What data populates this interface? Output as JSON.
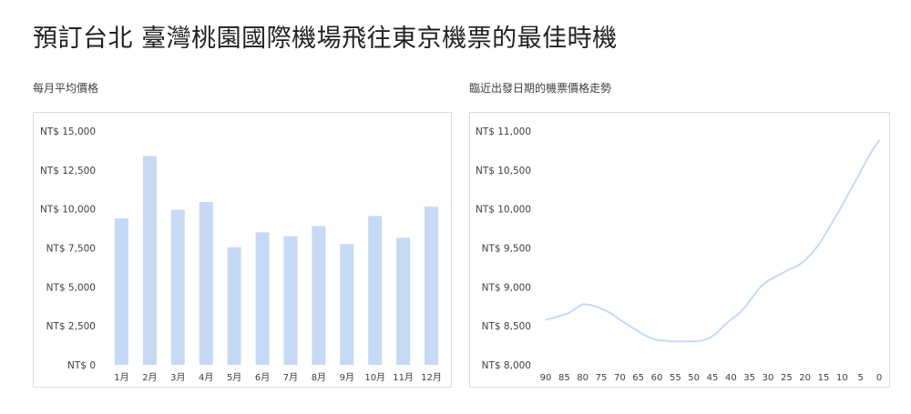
{
  "page": {
    "title": "預訂台北 臺灣桃園國際機場飛往東京機票的最佳時機"
  },
  "chart_data": [
    {
      "type": "bar",
      "title": "每月平均價格",
      "xlabel": "",
      "ylabel": "",
      "categories": [
        "1月",
        "2月",
        "3月",
        "4月",
        "5月",
        "6月",
        "7月",
        "8月",
        "9月",
        "10月",
        "11月",
        "12月"
      ],
      "values": [
        9400,
        13400,
        9950,
        10450,
        7550,
        8500,
        8250,
        8900,
        7750,
        9550,
        8150,
        10150
      ],
      "ylim": [
        0,
        15000
      ],
      "yticks": [
        0,
        2500,
        5000,
        7500,
        10000,
        12500,
        15000
      ],
      "ytick_labels": [
        "NT$ 0",
        "NT$ 2,500",
        "NT$ 5,000",
        "NT$ 7,500",
        "NT$ 10,000",
        "NT$ 12,500",
        "NT$ 15,000"
      ],
      "grid": false,
      "bar_color": "#c6d9f5"
    },
    {
      "type": "line",
      "title": "臨近出發日期的機票價格走勢",
      "xlabel": "",
      "ylabel": "",
      "x": [
        90,
        88,
        86,
        84,
        82,
        80,
        78,
        76,
        74,
        72,
        70,
        68,
        66,
        64,
        62,
        60,
        58,
        56,
        54,
        52,
        50,
        48,
        46,
        44,
        42,
        40,
        38,
        36,
        34,
        32,
        30,
        28,
        26,
        24,
        22,
        20,
        18,
        16,
        14,
        12,
        10,
        8,
        6,
        4,
        2,
        0
      ],
      "y": [
        8580,
        8600,
        8630,
        8660,
        8720,
        8780,
        8770,
        8740,
        8700,
        8650,
        8580,
        8520,
        8460,
        8400,
        8350,
        8320,
        8310,
        8300,
        8300,
        8300,
        8300,
        8310,
        8340,
        8400,
        8500,
        8580,
        8650,
        8750,
        8880,
        9000,
        9080,
        9130,
        9180,
        9230,
        9270,
        9340,
        9440,
        9560,
        9720,
        9880,
        10040,
        10220,
        10390,
        10570,
        10740,
        10880
      ],
      "xlim": [
        90,
        0
      ],
      "xticks": [
        90,
        85,
        80,
        75,
        70,
        65,
        60,
        55,
        50,
        45,
        40,
        35,
        30,
        25,
        20,
        15,
        10,
        5,
        0
      ],
      "ylim": [
        8000,
        11000
      ],
      "yticks": [
        8000,
        8500,
        9000,
        9500,
        10000,
        10500,
        11000
      ],
      "ytick_labels": [
        "NT$ 8,000",
        "NT$ 8,500",
        "NT$ 9,000",
        "NT$ 9,500",
        "NT$ 10,000",
        "NT$ 10,500",
        "NT$ 11,000"
      ],
      "grid": false,
      "line_color": "#c6d9f5"
    }
  ]
}
